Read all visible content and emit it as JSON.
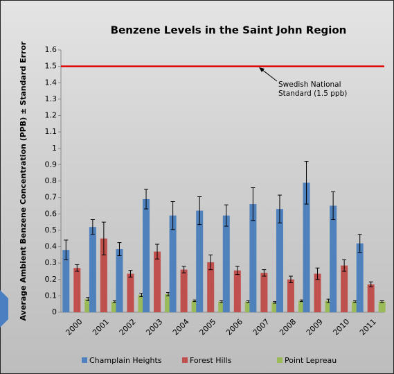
{
  "chart_data": {
    "type": "bar",
    "title": "Benzene Levels in the Saint John Region",
    "y_label": "Average Ambient Benzene Concentration (PPB) ± Standard Error",
    "categories": [
      "2000",
      "2001",
      "2002",
      "2003",
      "2004",
      "2005",
      "2006",
      "2007",
      "2008",
      "2009",
      "2010",
      "2011"
    ],
    "series": [
      {
        "name": "Champlain Heights",
        "color": "#4f81bd",
        "values": [
          0.38,
          0.52,
          0.385,
          0.69,
          0.59,
          0.62,
          0.59,
          0.66,
          0.63,
          0.79,
          0.65,
          0.42
        ],
        "errors": [
          0.06,
          0.045,
          0.04,
          0.06,
          0.085,
          0.085,
          0.065,
          0.1,
          0.085,
          0.13,
          0.085,
          0.055
        ]
      },
      {
        "name": "Forest Hills",
        "color": "#c0504d",
        "values": [
          0.27,
          0.45,
          0.235,
          0.37,
          0.26,
          0.305,
          0.255,
          0.24,
          0.2,
          0.235,
          0.285,
          0.17
        ],
        "errors": [
          0.02,
          0.1,
          0.02,
          0.045,
          0.02,
          0.045,
          0.025,
          0.02,
          0.02,
          0.035,
          0.035,
          0.015
        ]
      },
      {
        "name": "Point Lepreau",
        "color": "#9bbb59",
        "values": [
          0.08,
          0.065,
          0.105,
          0.11,
          0.07,
          0.065,
          0.065,
          0.06,
          0.07,
          0.07,
          0.065,
          0.065
        ],
        "errors": [
          0.01,
          0.005,
          0.01,
          0.01,
          0.005,
          0.005,
          0.005,
          0.005,
          0.005,
          0.01,
          0.005,
          0.005
        ]
      }
    ],
    "ylim": [
      0,
      1.6
    ],
    "yticks": [
      0,
      0.1,
      0.2,
      0.3,
      0.4,
      0.5,
      0.6,
      0.7,
      0.8,
      0.9,
      1,
      1.1,
      1.2,
      1.3,
      1.4,
      1.5,
      1.6
    ],
    "reference_line": {
      "value": 1.5,
      "color": "#e00000",
      "label": "Swedish National Standard (1.5 ppb)"
    },
    "legend": "bottom"
  }
}
